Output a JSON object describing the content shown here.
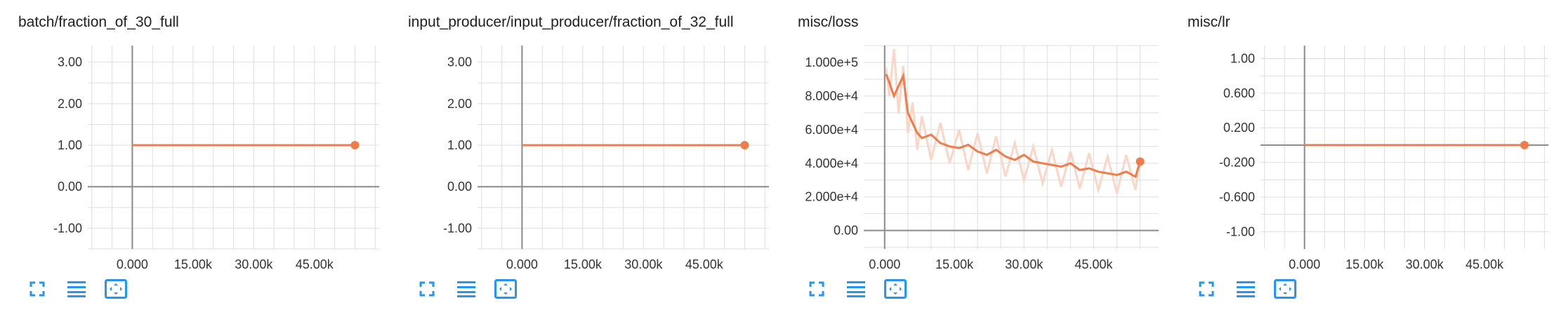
{
  "accent_color": "#f07c4c",
  "accent_light_color": "#fbd6c6",
  "toolbar": {
    "icons": [
      "fullscreen-icon",
      "toggle-log-scale-icon",
      "fit-domain-icon"
    ]
  },
  "chart_data": [
    {
      "type": "line",
      "title": "batch/fraction_of_30_full",
      "xlabel": "",
      "ylabel": "",
      "xlim": [
        -11000,
        61000
      ],
      "ylim": [
        -1.5,
        3.4
      ],
      "x_ticks": [
        "0.000",
        "15.00k",
        "30.00k",
        "45.00k"
      ],
      "x_tick_values": [
        0,
        15000,
        30000,
        45000
      ],
      "y_ticks": [
        "3.00",
        "2.00",
        "1.00",
        "0.00",
        "-1.00"
      ],
      "y_tick_values": [
        3,
        2,
        1,
        0,
        -1
      ],
      "grid": true,
      "series": [
        {
          "x": [
            0,
            10000,
            20000,
            30000,
            40000,
            50000,
            55000
          ],
          "y": [
            1,
            1,
            1,
            1,
            1,
            1,
            1
          ]
        }
      ]
    },
    {
      "type": "line",
      "title": "input_producer/input_producer/fraction_of_32_full",
      "xlabel": "",
      "ylabel": "",
      "xlim": [
        -11000,
        61000
      ],
      "ylim": [
        -1.5,
        3.4
      ],
      "x_ticks": [
        "0.000",
        "15.00k",
        "30.00k",
        "45.00k"
      ],
      "x_tick_values": [
        0,
        15000,
        30000,
        45000
      ],
      "y_ticks": [
        "3.00",
        "2.00",
        "1.00",
        "0.00",
        "-1.00"
      ],
      "y_tick_values": [
        3,
        2,
        1,
        0,
        -1
      ],
      "grid": true,
      "series": [
        {
          "x": [
            0,
            10000,
            20000,
            30000,
            40000,
            50000,
            55000
          ],
          "y": [
            1,
            1,
            1,
            1,
            1,
            1,
            1
          ]
        }
      ]
    },
    {
      "type": "line",
      "title": "misc/loss",
      "xlabel": "",
      "ylabel": "",
      "xlim": [
        -4500,
        59000
      ],
      "ylim": [
        -11000,
        110000
      ],
      "x_ticks": [
        "0.000",
        "15.00k",
        "30.00k",
        "45.00k"
      ],
      "x_tick_values": [
        0,
        15000,
        30000,
        45000
      ],
      "y_ticks": [
        "1.000e+5",
        "8.000e+4",
        "6.000e+4",
        "4.000e+4",
        "2.000e+4",
        "0.00"
      ],
      "y_tick_values": [
        100000,
        80000,
        60000,
        40000,
        20000,
        0
      ],
      "grid": true,
      "series": [
        {
          "name_role": "smoothed",
          "x": [
            300,
            1000,
            2000,
            3000,
            4000,
            5000,
            6000,
            7000,
            8000,
            10000,
            12000,
            14000,
            16000,
            18000,
            20000,
            22000,
            24000,
            26000,
            28000,
            30000,
            32000,
            34000,
            36000,
            38000,
            40000,
            42000,
            44000,
            46000,
            48000,
            50000,
            52000,
            54000,
            55000
          ],
          "y": [
            93000,
            88000,
            80000,
            86000,
            92000,
            70000,
            64000,
            58000,
            55000,
            57000,
            52000,
            50000,
            49000,
            51000,
            47000,
            45000,
            48000,
            44000,
            42000,
            45000,
            41000,
            40000,
            39000,
            38000,
            40000,
            36000,
            37000,
            35000,
            34000,
            33000,
            35000,
            32000,
            41000
          ]
        },
        {
          "name_role": "raw",
          "x": [
            300,
            1000,
            2000,
            3000,
            4000,
            5000,
            6000,
            7000,
            8000,
            10000,
            12000,
            14000,
            16000,
            18000,
            20000,
            22000,
            24000,
            26000,
            28000,
            30000,
            32000,
            34000,
            36000,
            38000,
            40000,
            42000,
            44000,
            46000,
            48000,
            50000,
            52000,
            54000,
            55000
          ],
          "y": [
            97000,
            80000,
            108000,
            70000,
            98000,
            58000,
            76000,
            48000,
            68000,
            42000,
            64000,
            40000,
            60000,
            36000,
            58000,
            34000,
            56000,
            32000,
            52000,
            30000,
            50000,
            28000,
            48000,
            26000,
            47000,
            25000,
            46000,
            24000,
            44000,
            22000,
            45000,
            24000,
            43000
          ]
        }
      ]
    },
    {
      "type": "line",
      "title": "misc/lr",
      "xlabel": "",
      "ylabel": "",
      "xlim": [
        -11000,
        61000
      ],
      "ylim": [
        -1.2,
        1.15
      ],
      "x_ticks": [
        "0.000",
        "15.00k",
        "30.00k",
        "45.00k"
      ],
      "x_tick_values": [
        0,
        15000,
        30000,
        45000
      ],
      "y_ticks": [
        "1.00",
        "0.600",
        "0.200",
        "-0.200",
        "-0.600",
        "-1.00"
      ],
      "y_tick_values": [
        1,
        0.6,
        0.2,
        -0.2,
        -0.6,
        -1
      ],
      "grid": true,
      "series": [
        {
          "x": [
            0,
            10000,
            20000,
            30000,
            40000,
            50000,
            55000
          ],
          "y": [
            0,
            0,
            0,
            0,
            0,
            0,
            0
          ]
        }
      ]
    }
  ]
}
